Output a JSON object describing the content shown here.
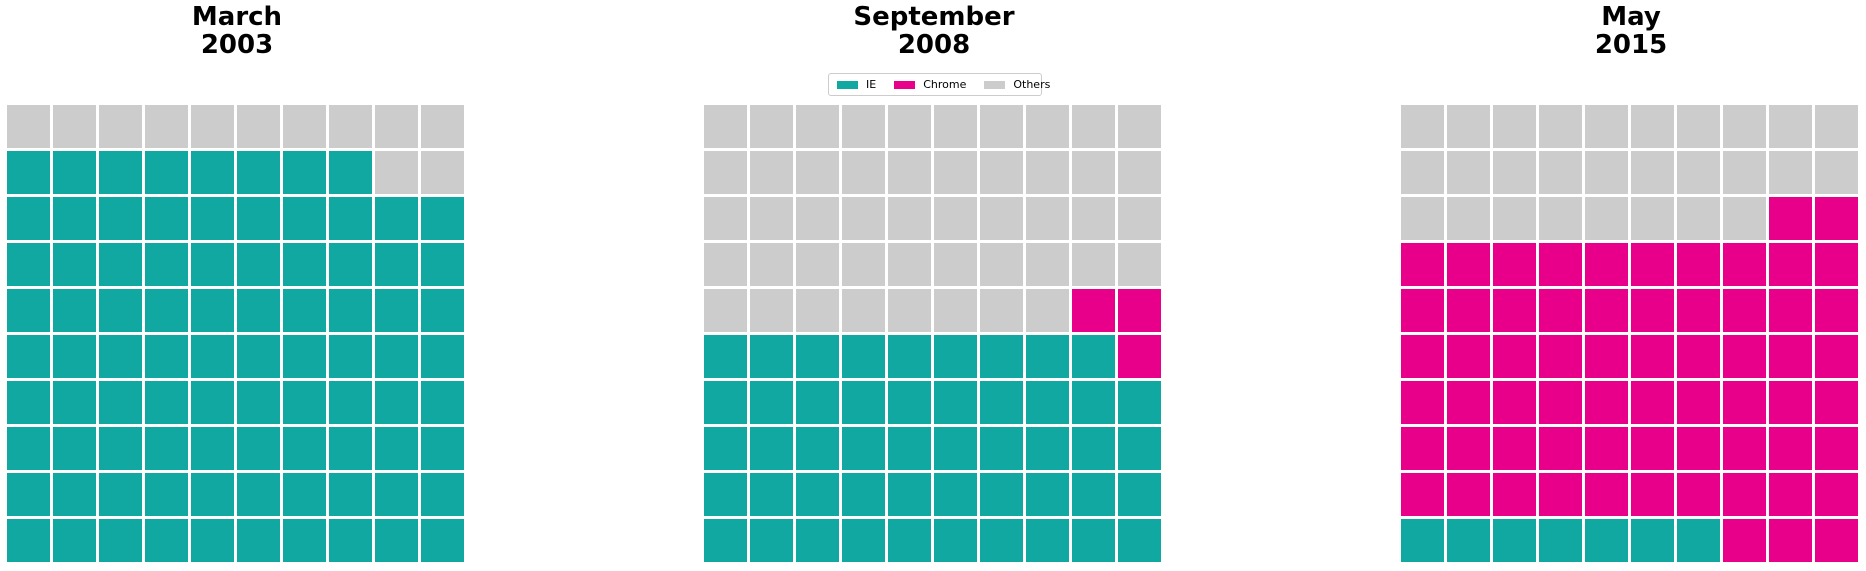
{
  "legend": {
    "items": [
      {
        "label": "IE",
        "color": "#12a8a2"
      },
      {
        "label": "Chrome",
        "color": "#e8008a"
      },
      {
        "label": "Others",
        "color": "#cccccc"
      }
    ]
  },
  "chart_data": [
    {
      "type": "waffle",
      "title_line1": "March",
      "title_line2": "2003",
      "grid": [
        10,
        10
      ],
      "values": {
        "IE": 88,
        "Chrome": 0,
        "Others": 12
      }
    },
    {
      "type": "waffle",
      "title_line1": "September",
      "title_line2": "2008",
      "grid": [
        10,
        10
      ],
      "values": {
        "IE": 49,
        "Chrome": 3,
        "Others": 48
      }
    },
    {
      "type": "waffle",
      "title_line1": "May",
      "title_line2": "2015",
      "grid": [
        10,
        10
      ],
      "values": {
        "IE": 7,
        "Chrome": 65,
        "Others": 28
      }
    }
  ]
}
